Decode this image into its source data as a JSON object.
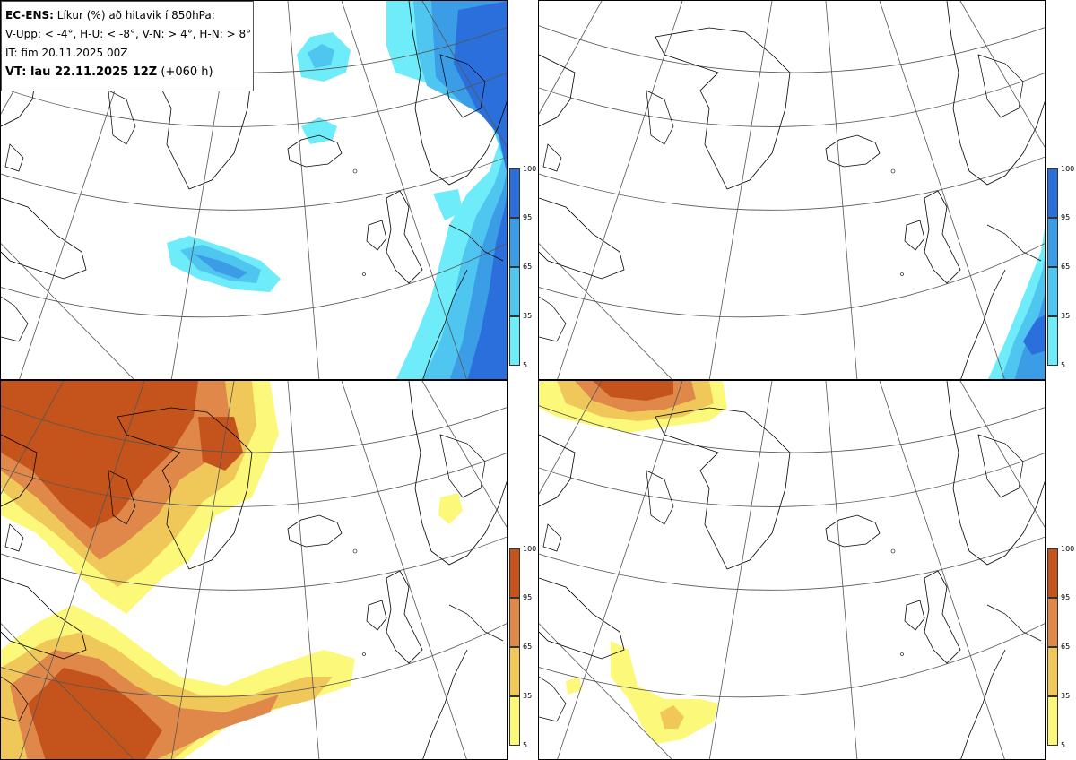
{
  "legend": {
    "model": "EC-ENS:",
    "title": "Líkur (%) að hitavik í 850hPa:",
    "thresholds": "V-Upp: < -4°, H-U: < -8°, V-N: > 4°, H-N: > 8°",
    "initial_time": "IT: fim 20.11.2025 00Z",
    "valid_time": "VT: lau 22.11.2025 12Z",
    "lead": "(+060 h)"
  },
  "colorbar_blue": {
    "ticks": [
      "100",
      "95",
      "65",
      "35",
      "5"
    ],
    "colors": [
      "#2a6fdb",
      "#3a9de6",
      "#4fc6ef",
      "#6fecf9"
    ]
  },
  "colorbar_orange": {
    "ticks": [
      "100",
      "95",
      "65",
      "35",
      "5"
    ],
    "colors": [
      "#c4541c",
      "#e0884a",
      "#f0c85a",
      "#fcf87a"
    ]
  },
  "panels": {
    "top_left": "V-Upp: < -4°",
    "top_right": "H-U: < -8°",
    "bottom_left": "V-N: > 4°",
    "bottom_right": "H-N: > 8°"
  }
}
